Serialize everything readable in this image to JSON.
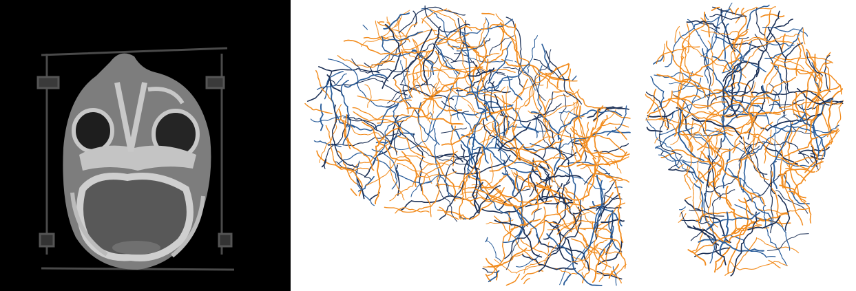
{
  "figure": {
    "panels": [
      {
        "id": "ct-axial-slice",
        "description_icon": "ct-scan-image"
      },
      {
        "id": "skull-lateral-view",
        "description_icon": "vessel-centerline-render"
      },
      {
        "id": "skull-frontal-view",
        "description_icon": "vessel-centerline-render"
      }
    ]
  },
  "colors": {
    "ct_background": "#000000",
    "soft_tissue": "#7d7d7d",
    "bone": "#c8c8c8",
    "dark_cavity": "#1a1a1a",
    "brain": "#565656",
    "vessel_a": "#f28c1e",
    "vessel_b": "#2a5d9a",
    "vessel_c": "#1b2f55"
  }
}
